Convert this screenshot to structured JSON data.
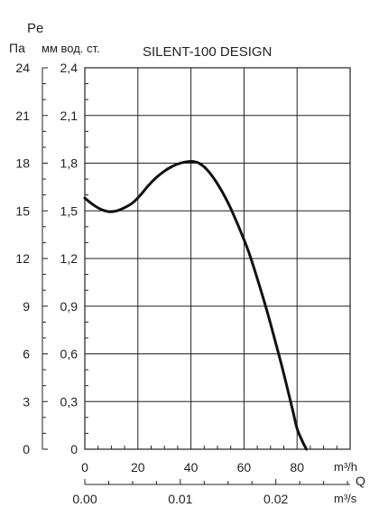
{
  "chart_data": {
    "type": "line",
    "title": "SILENT-100 DESIGN",
    "y_symbol": "Pe",
    "y_unit_pa": "Па",
    "y_unit_mm": "мм вод. ст.",
    "x_unit_top": "m³/h",
    "x_symbol": "Q",
    "x_unit_bottom": "m³/s",
    "xlim": [
      0,
      100
    ],
    "ylim": [
      0,
      24
    ],
    "x_ticks": [
      "0",
      "20",
      "40",
      "60",
      "80"
    ],
    "x2_ticks": [
      "0.00",
      "0.01",
      "0.02"
    ],
    "y_ticks_pa": [
      "0",
      "3",
      "6",
      "9",
      "12",
      "15",
      "18",
      "21",
      "24"
    ],
    "y_ticks_mm": [
      "0",
      "0,3",
      "0,6",
      "0,9",
      "1,2",
      "1,5",
      "1,8",
      "2,1",
      "2,4"
    ],
    "grid": true,
    "series": [
      {
        "x": [
          0,
          3,
          6,
          9,
          12,
          15,
          18,
          21,
          24,
          27,
          30,
          33,
          36,
          39,
          41,
          43,
          46,
          50,
          54,
          58,
          62,
          66,
          70,
          74,
          78,
          80,
          82,
          83.5
        ],
        "y": [
          15.8,
          15.4,
          15.1,
          14.95,
          15.0,
          15.2,
          15.5,
          16.0,
          16.6,
          17.1,
          17.5,
          17.8,
          18.0,
          18.1,
          18.1,
          18.0,
          17.6,
          16.7,
          15.5,
          14.0,
          12.3,
          10.2,
          7.9,
          5.4,
          2.7,
          1.3,
          0.5,
          0
        ]
      }
    ]
  }
}
